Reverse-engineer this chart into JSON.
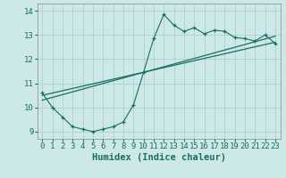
{
  "xlabel": "Humidex (Indice chaleur)",
  "xlim": [
    -0.5,
    23.5
  ],
  "ylim": [
    8.7,
    14.3
  ],
  "xticks": [
    0,
    1,
    2,
    3,
    4,
    5,
    6,
    7,
    8,
    9,
    10,
    11,
    12,
    13,
    14,
    15,
    16,
    17,
    18,
    19,
    20,
    21,
    22,
    23
  ],
  "yticks": [
    9,
    10,
    11,
    12,
    13,
    14
  ],
  "bg_color": "#cce8e8",
  "grid_color": "#b0d0d0",
  "line_color": "#1a6e60",
  "line1_x": [
    0,
    1,
    2,
    3,
    4,
    5,
    6,
    7,
    8,
    9,
    10,
    11,
    12,
    13,
    14,
    15,
    16,
    17,
    18,
    19,
    20,
    21,
    22,
    23
  ],
  "line1_y": [
    10.6,
    10.0,
    9.6,
    9.2,
    9.1,
    9.0,
    9.1,
    9.2,
    9.4,
    10.1,
    11.45,
    12.85,
    13.85,
    13.4,
    13.15,
    13.3,
    13.05,
    13.2,
    13.15,
    12.9,
    12.85,
    12.75,
    13.0,
    12.65
  ],
  "line2_x": [
    0,
    23
  ],
  "line2_y": [
    10.5,
    12.7
  ],
  "line3_x": [
    0,
    23
  ],
  "line3_y": [
    10.3,
    12.95
  ],
  "tick_fontsize": 6.5,
  "label_fontsize": 7.5
}
